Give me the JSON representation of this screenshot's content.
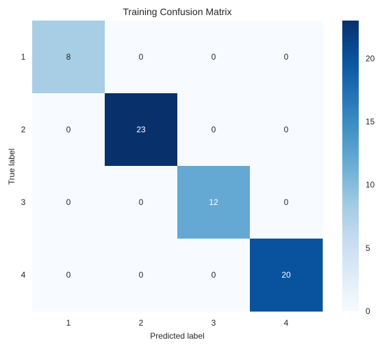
{
  "chart_data": {
    "type": "heatmap",
    "title": "Training Confusion Matrix",
    "xlabel": "Predicted label",
    "ylabel": "True label",
    "x_categories": [
      "1",
      "2",
      "3",
      "4"
    ],
    "y_categories": [
      "1",
      "2",
      "3",
      "4"
    ],
    "matrix": [
      [
        8,
        0,
        0,
        0
      ],
      [
        0,
        23,
        0,
        0
      ],
      [
        0,
        0,
        12,
        0
      ],
      [
        0,
        0,
        0,
        20
      ]
    ],
    "colormap": "Blues",
    "vmin": 0,
    "vmax": 23,
    "colorbar_ticks": [
      "0",
      "5",
      "10",
      "15",
      "20"
    ],
    "grid": false
  },
  "colors": {
    "low": "#f7fbff",
    "high": "#08306b",
    "text_dark": "#262626",
    "text_light": "#ffffff"
  }
}
